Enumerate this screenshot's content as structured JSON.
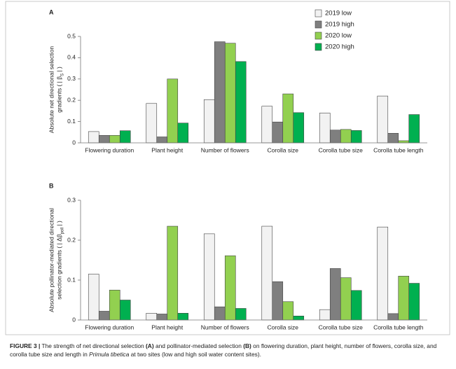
{
  "chart_data": [
    {
      "type": "bar",
      "panel": "A",
      "legend": "upper right",
      "ylabel": {
        "lines": [
          "Absolute net directional selection",
          "gradients ( | β"
        ],
        "sub": "S",
        "after": " | )"
      },
      "categories": [
        "Flowering duration",
        "Plant height",
        "Number of flowers",
        "Corolla size",
        "Corolla tube size",
        "Corolla tube length"
      ],
      "series": [
        {
          "name": "2019 low",
          "color": "#f2f2f2",
          "values": [
            0.053,
            0.185,
            0.203,
            0.172,
            0.14,
            0.22
          ]
        },
        {
          "name": "2019 high",
          "color": "#7f7f7f",
          "values": [
            0.035,
            0.028,
            0.475,
            0.098,
            0.06,
            0.045
          ]
        },
        {
          "name": "2020 low",
          "color": "#92d050",
          "values": [
            0.035,
            0.3,
            0.468,
            0.23,
            0.063,
            0.01
          ]
        },
        {
          "name": "2020 high",
          "color": "#00b050",
          "values": [
            0.057,
            0.093,
            0.382,
            0.142,
            0.058,
            0.133
          ]
        }
      ],
      "ylim": [
        0,
        0.5
      ],
      "yticks": [
        0,
        0.1,
        0.2,
        0.3,
        0.4,
        0.5
      ]
    },
    {
      "type": "bar",
      "panel": "B",
      "ylabel": {
        "lines": [
          "Absolute pollinator-mediated directional",
          "selection gradients ( | Δβ"
        ],
        "sub": "poll",
        "after": " | )"
      },
      "categories": [
        "Flowering duration",
        "Plant height",
        "Number of flowers",
        "Corolla size",
        "Corolla tube size",
        "Corolla tube length"
      ],
      "series": [
        {
          "color": "#f2f2f2",
          "values": [
            0.115,
            0.017,
            0.216,
            0.235,
            0.026,
            0.233
          ]
        },
        {
          "color": "#7f7f7f",
          "values": [
            0.022,
            0.015,
            0.033,
            0.096,
            0.129,
            0.016
          ]
        },
        {
          "color": "#92d050",
          "values": [
            0.075,
            0.235,
            0.161,
            0.046,
            0.106,
            0.11
          ]
        },
        {
          "color": "#00b050",
          "values": [
            0.05,
            0.017,
            0.029,
            0.01,
            0.074,
            0.092
          ]
        }
      ],
      "ylim": [
        0,
        0.3
      ],
      "yticks": [
        0,
        0.1,
        0.2,
        0.3
      ]
    }
  ],
  "caption": {
    "parts": [
      {
        "text": "FIGURE 3 |",
        "bold": true
      },
      {
        "text": " The strength of net directional selection "
      },
      {
        "text": "(A)",
        "bold": true
      },
      {
        "text": " and pollinator-mediated selection "
      },
      {
        "text": "(B)",
        "bold": true
      },
      {
        "text": " on flowering duration, plant height, number of flowers, corolla size, and corolla tube size and length in "
      },
      {
        "text": "Primula tibetica",
        "italic": true
      },
      {
        "text": " at two sites (low and high soil water content sites)."
      }
    ]
  }
}
